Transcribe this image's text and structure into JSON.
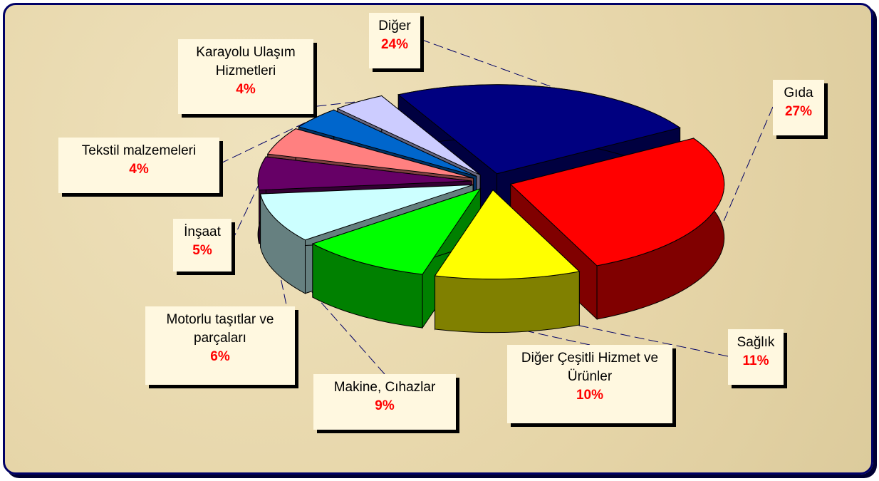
{
  "chart_data": {
    "type": "pie",
    "categories": [
      "Diğer",
      "Gıda",
      "Sağlık",
      "Diğer Çeşitli Hizmet ve Ürünler",
      "Makine, Cıhazlar",
      "Motorlu taşıtlar ve parçaları",
      "İnşaat",
      "Tekstil malzemeleri",
      "Karayolu Ulaşım Hizmetleri"
    ],
    "values": [
      24,
      27,
      11,
      10,
      9,
      6,
      5,
      4,
      4
    ],
    "value_labels": [
      "24%",
      "27%",
      "11%",
      "10%",
      "9%",
      "6%",
      "5%",
      "4%",
      "4%"
    ],
    "colors": [
      "#000080",
      "#ff0000",
      "#ffff00",
      "#00ff00",
      "#ccffff",
      "#660066",
      "#ff8080",
      "#0066cc",
      "#ccccff"
    ]
  }
}
